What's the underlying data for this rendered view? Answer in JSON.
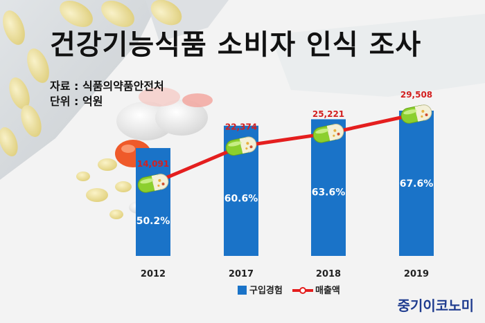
{
  "title": "건강기능식품 소비자 인식 조사",
  "source": "자료 : 식품의약품안전처",
  "unit": "단위 : 억원",
  "brand": "중기이코노미",
  "colors": {
    "bar": "#1a73c8",
    "line": "#e41e1e",
    "sales_label": "#d32020",
    "bar_label": "#ffffff"
  },
  "chart_data": {
    "type": "bar",
    "categories": [
      "2012",
      "2017",
      "2018",
      "2019"
    ],
    "series": [
      {
        "name": "구입경험",
        "type": "bar",
        "values": [
          50.2,
          60.6,
          63.6,
          67.6
        ],
        "labels": [
          "50.2%",
          "60.6%",
          "63.6%",
          "67.6%"
        ]
      },
      {
        "name": "매출액",
        "type": "line",
        "values": [
          14091,
          22374,
          25221,
          29508
        ],
        "labels": [
          "14,091",
          "22,374",
          "25,221",
          "29,508"
        ]
      }
    ],
    "legend": "bottom",
    "grid": false
  }
}
